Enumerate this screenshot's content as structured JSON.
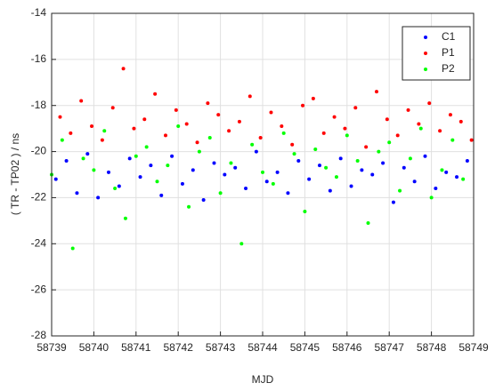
{
  "chart_data": {
    "type": "scatter",
    "xlabel": "MJD",
    "ylabel": "( TR - TP02 ) / ns",
    "xlim": [
      58739,
      58749
    ],
    "xticks": [
      58739,
      58740,
      58741,
      58742,
      58743,
      58744,
      58745,
      58746,
      58747,
      58748,
      58749
    ],
    "ylim": [
      -28,
      -14
    ],
    "yticks": [
      -28,
      -26,
      -24,
      -22,
      -20,
      -18,
      -16,
      -14
    ],
    "grid": true,
    "legend": "upper right",
    "series": [
      {
        "name": "C1",
        "color": "#0000ff",
        "x": [
          58739.1,
          58739.35,
          58739.6,
          58739.85,
          58740.1,
          58740.35,
          58740.6,
          58740.85,
          58741.1,
          58741.35,
          58741.6,
          58741.85,
          58742.1,
          58742.35,
          58742.6,
          58742.85,
          58743.1,
          58743.35,
          58743.6,
          58743.85,
          58744.1,
          58744.35,
          58744.6,
          58744.85,
          58745.1,
          58745.35,
          58745.6,
          58745.85,
          58746.1,
          58746.35,
          58746.6,
          58746.85,
          58747.1,
          58747.35,
          58747.6,
          58747.85,
          58748.1,
          58748.35,
          58748.6,
          58748.85
        ],
        "values": [
          -21.2,
          -20.4,
          -21.8,
          -20.1,
          -22.0,
          -20.9,
          -21.5,
          -20.3,
          -21.1,
          -20.6,
          -21.9,
          -20.2,
          -21.4,
          -20.8,
          -22.1,
          -20.5,
          -21.0,
          -20.7,
          -21.6,
          -20.0,
          -21.3,
          -20.9,
          -21.8,
          -20.4,
          -21.2,
          -20.6,
          -21.7,
          -20.3,
          -21.5,
          -20.8,
          -21.0,
          -20.5,
          -22.2,
          -20.7,
          -21.3,
          -20.2,
          -21.6,
          -20.9,
          -21.1,
          -20.4
        ]
      },
      {
        "name": "P1",
        "color": "#ff0000",
        "x": [
          58739.2,
          58739.45,
          58739.7,
          58739.95,
          58740.2,
          58740.45,
          58740.7,
          58740.95,
          58741.2,
          58741.45,
          58741.7,
          58741.95,
          58742.2,
          58742.45,
          58742.7,
          58742.95,
          58743.2,
          58743.45,
          58743.7,
          58743.95,
          58744.2,
          58744.45,
          58744.7,
          58744.95,
          58745.2,
          58745.45,
          58745.7,
          58745.95,
          58746.2,
          58746.45,
          58746.7,
          58746.95,
          58747.2,
          58747.45,
          58747.7,
          58747.95,
          58748.2,
          58748.45,
          58748.7,
          58748.95
        ],
        "values": [
          -18.5,
          -19.2,
          -17.8,
          -18.9,
          -19.5,
          -18.1,
          -16.4,
          -19.0,
          -18.6,
          -17.5,
          -19.3,
          -18.2,
          -18.8,
          -19.6,
          -17.9,
          -18.4,
          -19.1,
          -18.7,
          -17.6,
          -19.4,
          -18.3,
          -18.9,
          -19.7,
          -18.0,
          -17.7,
          -19.2,
          -18.5,
          -19.0,
          -18.1,
          -19.8,
          -17.4,
          -18.6,
          -19.3,
          -18.2,
          -18.8,
          -17.9,
          -19.1,
          -18.4,
          -18.7,
          -19.5
        ]
      },
      {
        "name": "P2",
        "color": "#00ff00",
        "x": [
          58739.0,
          58739.25,
          58739.5,
          58739.75,
          58740.0,
          58740.25,
          58740.5,
          58740.75,
          58741.0,
          58741.25,
          58741.5,
          58741.75,
          58742.0,
          58742.25,
          58742.5,
          58742.75,
          58743.0,
          58743.25,
          58743.5,
          58743.75,
          58744.0,
          58744.25,
          58744.5,
          58744.75,
          58745.0,
          58745.25,
          58745.5,
          58745.75,
          58746.0,
          58746.25,
          58746.5,
          58746.75,
          58747.0,
          58747.25,
          58747.5,
          58747.75,
          58748.0,
          58748.25,
          58748.5,
          58748.75
        ],
        "values": [
          -21.0,
          -19.5,
          -24.2,
          -20.3,
          -20.8,
          -19.1,
          -21.6,
          -22.9,
          -20.2,
          -19.8,
          -21.3,
          -20.6,
          -18.9,
          -22.4,
          -20.0,
          -19.4,
          -21.8,
          -20.5,
          -24.0,
          -19.7,
          -20.9,
          -21.4,
          -19.2,
          -20.1,
          -22.6,
          -19.9,
          -20.7,
          -21.1,
          -19.3,
          -20.4,
          -23.1,
          -20.0,
          -19.6,
          -21.7,
          -20.3,
          -19.0,
          -22.0,
          -20.8,
          -19.5,
          -21.2
        ]
      }
    ]
  }
}
